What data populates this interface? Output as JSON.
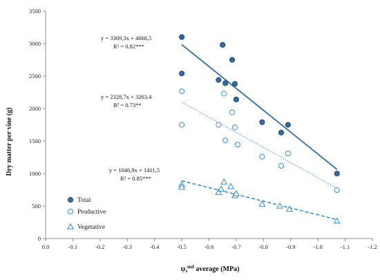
{
  "chart_data": {
    "type": "scatter",
    "title": "",
    "xlabel_main": "ψ",
    "xlabel_sub": "s",
    "xlabel_sup": "md",
    "xlabel_rest": " average (MPa)",
    "ylabel": "Dry matter per vine (g)",
    "xlim": [
      0.0,
      -1.2
    ],
    "ylim": [
      0,
      3500
    ],
    "x_ticks": [
      0.0,
      -0.1,
      -0.2,
      -0.3,
      -0.4,
      -0.5,
      -0.6,
      -0.7,
      -0.8,
      -0.9,
      -1.0,
      -1.1,
      -1.2
    ],
    "x_tick_labels": [
      "0.0",
      "-0.1",
      "-0.2",
      "-0.3",
      "-0.4",
      "-0.5",
      "-0.6",
      "-0.7",
      "-0.8",
      "-0.9",
      "-1.0",
      "-1.1",
      "-1.2"
    ],
    "y_ticks": [
      0,
      500,
      1000,
      1500,
      2000,
      2500,
      3000,
      3500
    ],
    "y_tick_labels": [
      "0",
      "500",
      "1000",
      "1500",
      "2000",
      "2500",
      "3000",
      "3500"
    ],
    "grid": false,
    "legend_position": "bottom-left",
    "series": [
      {
        "name": "Total",
        "marker": "filled-circle",
        "color": "#2e6da4",
        "points": [
          {
            "x": -0.5,
            "y": 3100
          },
          {
            "x": -0.5,
            "y": 2540
          },
          {
            "x": -0.635,
            "y": 2440
          },
          {
            "x": -0.65,
            "y": 2980
          },
          {
            "x": -0.66,
            "y": 2390
          },
          {
            "x": -0.685,
            "y": 2750
          },
          {
            "x": -0.695,
            "y": 2380
          },
          {
            "x": -0.7,
            "y": 2140
          },
          {
            "x": -0.795,
            "y": 1790
          },
          {
            "x": -0.865,
            "y": 1630
          },
          {
            "x": -0.89,
            "y": 1750
          },
          {
            "x": -1.07,
            "y": 1000
          }
        ],
        "trend": {
          "slope": 3369.3,
          "intercept": 4668.5,
          "x_range": [
            -0.5,
            -1.07
          ],
          "style": "solid"
        },
        "equation": "y = 3369,3x + 4668,5",
        "r2": "R² = 0.82***"
      },
      {
        "name": "Productive",
        "marker": "open-circle",
        "color": "#2e8fd6",
        "points": [
          {
            "x": -0.5,
            "y": 2265
          },
          {
            "x": -0.5,
            "y": 1750
          },
          {
            "x": -0.635,
            "y": 1750
          },
          {
            "x": -0.655,
            "y": 2230
          },
          {
            "x": -0.66,
            "y": 1510
          },
          {
            "x": -0.685,
            "y": 1940
          },
          {
            "x": -0.695,
            "y": 1710
          },
          {
            "x": -0.705,
            "y": 1445
          },
          {
            "x": -0.795,
            "y": 1260
          },
          {
            "x": -0.865,
            "y": 1120
          },
          {
            "x": -0.89,
            "y": 1310
          },
          {
            "x": -1.07,
            "y": 745
          }
        ],
        "trend": {
          "slope": 2328.7,
          "intercept": 3263.4,
          "x_range": [
            -0.5,
            -1.07
          ],
          "style": "dotted"
        },
        "equation": "y = 2328,7x + 3263,4",
        "r2": "R² = 0.73**"
      },
      {
        "name": "Vegetative",
        "marker": "open-triangle",
        "color": "#2e8fd6",
        "points": [
          {
            "x": -0.5,
            "y": 830
          },
          {
            "x": -0.5,
            "y": 790
          },
          {
            "x": -0.635,
            "y": 710
          },
          {
            "x": -0.645,
            "y": 760
          },
          {
            "x": -0.655,
            "y": 870
          },
          {
            "x": -0.68,
            "y": 800
          },
          {
            "x": -0.695,
            "y": 660
          },
          {
            "x": -0.7,
            "y": 690
          },
          {
            "x": -0.795,
            "y": 530
          },
          {
            "x": -0.86,
            "y": 500
          },
          {
            "x": -0.895,
            "y": 450
          },
          {
            "x": -1.07,
            "y": 270
          }
        ],
        "trend": {
          "slope": 1046.9,
          "intercept": 1411.5,
          "x_range": [
            -0.5,
            -1.07
          ],
          "style": "dashed"
        },
        "equation": "y = 1046,9x + 1411,5",
        "r2": "R² = 0.85***"
      }
    ]
  }
}
